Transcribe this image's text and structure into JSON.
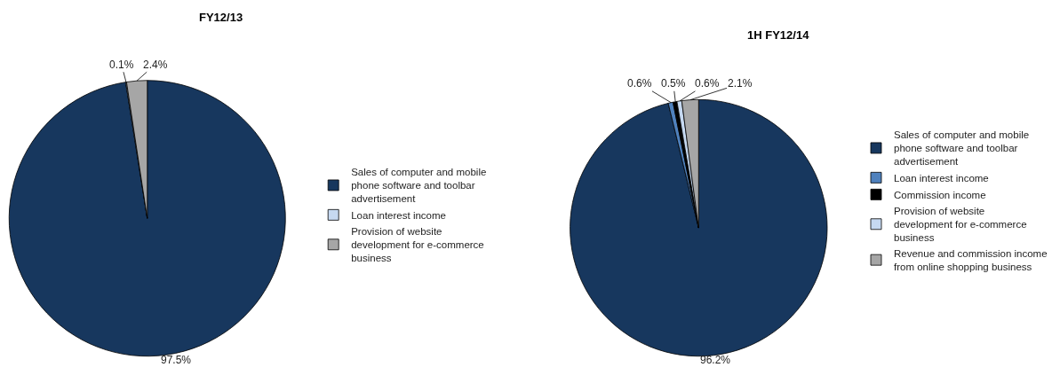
{
  "chart_data": [
    {
      "type": "pie",
      "title": "FY12/13",
      "legend": "right",
      "categories": [
        "Sales of computer and mobile phone software and toolbar advertisement",
        "Loan interest income",
        "Provision of website development for e-commerce business"
      ],
      "values": [
        97.5,
        0.1,
        2.4
      ],
      "colors": [
        "#17375e",
        "#c6d9f1",
        "#a6a6a6"
      ],
      "value_labels": [
        "97.5%",
        "0.1%",
        "2.4%"
      ]
    },
    {
      "type": "pie",
      "title": "1H FY12/14",
      "legend": "right",
      "categories": [
        "Sales of computer and mobile phone software and toolbar advertisement",
        "Loan interest income",
        "Commission income",
        "Provision of website development for e-commerce business",
        "Revenue and commission income from online shopping business"
      ],
      "values": [
        96.2,
        0.6,
        0.5,
        0.6,
        2.1
      ],
      "colors": [
        "#17375e",
        "#4f81bd",
        "#000000",
        "#c6d9f1",
        "#a6a6a6"
      ],
      "value_labels": [
        "96.2%",
        "0.6%",
        "0.5%",
        "0.6%",
        "2.1%"
      ]
    }
  ]
}
